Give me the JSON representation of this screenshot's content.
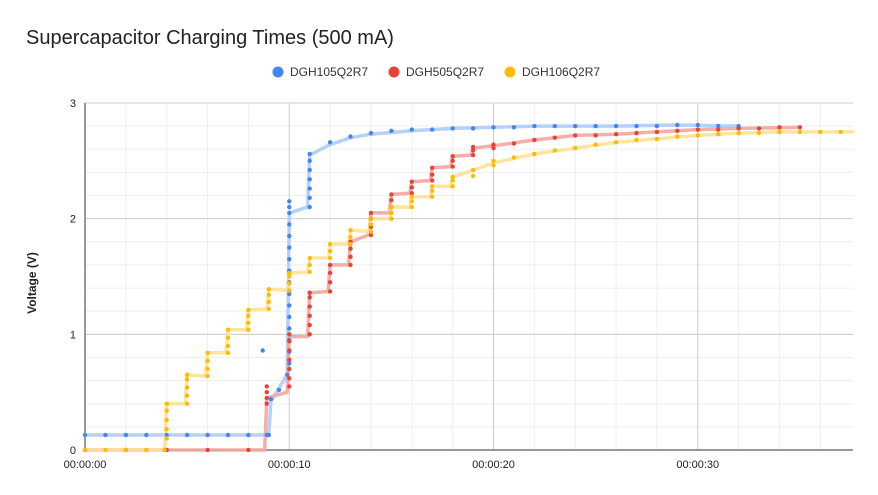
{
  "chart_data": {
    "type": "scatter",
    "title": "Supercapacitor Charging Times (500 mA)",
    "xlabel": "",
    "ylabel": "Voltage (V)",
    "xlim": [
      0,
      37.6
    ],
    "ylim": [
      0,
      3
    ],
    "x_ticks": [
      {
        "value": 0,
        "label": "00:00:00"
      },
      {
        "value": 10,
        "label": "00:00:10"
      },
      {
        "value": 20,
        "label": "00:00:20"
      },
      {
        "value": 30,
        "label": "00:00:30"
      }
    ],
    "y_ticks": [
      {
        "value": 0,
        "label": "0"
      },
      {
        "value": 1,
        "label": "1"
      },
      {
        "value": 2,
        "label": "2"
      },
      {
        "value": 3,
        "label": "3"
      }
    ],
    "legend_position": "top",
    "grid": true,
    "series": [
      {
        "name": "DGH105Q2R7",
        "color": "#4285f4",
        "line_color": "#aecbfa",
        "points": [
          [
            0,
            0.13
          ],
          [
            1,
            0.13
          ],
          [
            2,
            0.13
          ],
          [
            3,
            0.13
          ],
          [
            4,
            0.13
          ],
          [
            5,
            0.13
          ],
          [
            6,
            0.13
          ],
          [
            7,
            0.13
          ],
          [
            8,
            0.13
          ],
          [
            8.9,
            0.13
          ],
          [
            9,
            0.13
          ],
          [
            9.1,
            0.44
          ],
          [
            9.5,
            0.52
          ],
          [
            9.9,
            0.65
          ],
          [
            10,
            0.75
          ],
          [
            10,
            0.85
          ],
          [
            10,
            0.95
          ],
          [
            10,
            1.05
          ],
          [
            10,
            1.15
          ],
          [
            10,
            1.25
          ],
          [
            10,
            1.35
          ],
          [
            10,
            1.45
          ],
          [
            10,
            1.55
          ],
          [
            10,
            1.65
          ],
          [
            10,
            1.75
          ],
          [
            10,
            1.85
          ],
          [
            10,
            1.95
          ],
          [
            10,
            2.05
          ],
          [
            10,
            2.1
          ],
          [
            10,
            2.15
          ],
          [
            11,
            2.1
          ],
          [
            11,
            2.18
          ],
          [
            11,
            2.26
          ],
          [
            11,
            2.34
          ],
          [
            11,
            2.42
          ],
          [
            11,
            2.5
          ],
          [
            11,
            2.56
          ],
          [
            12,
            2.66
          ],
          [
            13,
            2.71
          ],
          [
            14,
            2.74
          ],
          [
            15,
            2.76
          ],
          [
            16,
            2.77
          ],
          [
            17,
            2.77
          ],
          [
            18,
            2.78
          ],
          [
            19,
            2.78
          ],
          [
            20,
            2.79
          ],
          [
            21,
            2.79
          ],
          [
            22,
            2.8
          ],
          [
            23,
            2.8
          ],
          [
            24,
            2.8
          ],
          [
            25,
            2.8
          ],
          [
            26,
            2.8
          ],
          [
            27,
            2.8
          ],
          [
            28,
            2.8
          ],
          [
            29,
            2.81
          ],
          [
            30,
            2.81
          ],
          [
            31,
            2.8
          ],
          [
            32,
            2.8
          ]
        ],
        "line": [
          [
            0,
            0.13
          ],
          [
            9,
            0.13
          ],
          [
            9.1,
            0.42
          ],
          [
            9.9,
            0.65
          ],
          [
            10,
            2.05
          ],
          [
            10.9,
            2.1
          ],
          [
            11,
            2.55
          ],
          [
            12,
            2.64
          ],
          [
            13,
            2.7
          ],
          [
            14,
            2.73
          ],
          [
            16,
            2.76
          ],
          [
            18,
            2.78
          ],
          [
            20,
            2.79
          ],
          [
            22,
            2.8
          ],
          [
            26,
            2.8
          ],
          [
            29,
            2.81
          ],
          [
            32,
            2.8
          ]
        ],
        "outliers": [
          [
            8.7,
            0.86
          ]
        ]
      },
      {
        "name": "DGH505Q2R7",
        "color": "#ea4335",
        "line_color": "#f4a6a0",
        "points": [
          [
            0,
            0.0
          ],
          [
            2,
            0.0
          ],
          [
            4,
            0.0
          ],
          [
            6,
            0.0
          ],
          [
            8,
            0.0
          ],
          [
            8.9,
            0.4
          ],
          [
            8.9,
            0.45
          ],
          [
            8.9,
            0.5
          ],
          [
            8.9,
            0.55
          ],
          [
            10,
            0.55
          ],
          [
            10,
            0.62
          ],
          [
            10,
            0.7
          ],
          [
            10,
            0.78
          ],
          [
            10,
            0.86
          ],
          [
            10,
            0.94
          ],
          [
            10,
            1.0
          ],
          [
            11,
            1.0
          ],
          [
            11,
            1.08
          ],
          [
            11,
            1.16
          ],
          [
            11,
            1.24
          ],
          [
            11,
            1.32
          ],
          [
            11,
            1.36
          ],
          [
            12,
            1.37
          ],
          [
            12,
            1.45
          ],
          [
            12,
            1.53
          ],
          [
            12,
            1.6
          ],
          [
            13,
            1.6
          ],
          [
            13,
            1.67
          ],
          [
            13,
            1.74
          ],
          [
            13,
            1.8
          ],
          [
            14,
            1.86
          ],
          [
            14,
            1.93
          ],
          [
            14,
            2.0
          ],
          [
            14,
            2.05
          ],
          [
            15,
            2.05
          ],
          [
            15,
            2.1
          ],
          [
            15,
            2.16
          ],
          [
            15,
            2.21
          ],
          [
            16,
            2.22
          ],
          [
            16,
            2.27
          ],
          [
            16,
            2.32
          ],
          [
            17,
            2.33
          ],
          [
            17,
            2.38
          ],
          [
            17,
            2.44
          ],
          [
            18,
            2.45
          ],
          [
            18,
            2.5
          ],
          [
            18,
            2.54
          ],
          [
            19,
            2.55
          ],
          [
            19,
            2.59
          ],
          [
            19,
            2.62
          ],
          [
            20,
            2.61
          ],
          [
            20,
            2.64
          ],
          [
            21,
            2.65
          ],
          [
            22,
            2.68
          ],
          [
            23,
            2.7
          ],
          [
            24,
            2.72
          ],
          [
            25,
            2.72
          ],
          [
            26,
            2.73
          ],
          [
            27,
            2.74
          ],
          [
            28,
            2.75
          ],
          [
            29,
            2.76
          ],
          [
            30,
            2.77
          ],
          [
            31,
            2.77
          ],
          [
            32,
            2.78
          ],
          [
            33,
            2.78
          ],
          [
            34,
            2.79
          ],
          [
            35,
            2.79
          ]
        ],
        "line": [
          [
            0,
            0.0
          ],
          [
            8.8,
            0.0
          ],
          [
            8.9,
            0.45
          ],
          [
            9.9,
            0.5
          ],
          [
            10,
            0.98
          ],
          [
            10.9,
            0.98
          ],
          [
            11,
            1.36
          ],
          [
            11.9,
            1.37
          ],
          [
            12,
            1.6
          ],
          [
            12.9,
            1.6
          ],
          [
            13,
            1.8
          ],
          [
            13.9,
            1.86
          ],
          [
            14,
            2.05
          ],
          [
            14.9,
            2.05
          ],
          [
            15,
            2.21
          ],
          [
            15.9,
            2.22
          ],
          [
            16,
            2.32
          ],
          [
            16.9,
            2.33
          ],
          [
            17,
            2.44
          ],
          [
            17.9,
            2.45
          ],
          [
            18,
            2.54
          ],
          [
            18.9,
            2.55
          ],
          [
            19,
            2.61
          ],
          [
            20,
            2.63
          ],
          [
            22,
            2.68
          ],
          [
            24,
            2.72
          ],
          [
            26,
            2.73
          ],
          [
            28,
            2.75
          ],
          [
            30,
            2.77
          ],
          [
            32,
            2.78
          ],
          [
            35,
            2.79
          ]
        ]
      },
      {
        "name": "DGH106Q2R7",
        "color": "#fbbc04",
        "line_color": "#fde293",
        "points": [
          [
            0,
            0.0
          ],
          [
            1,
            0.0
          ],
          [
            2,
            0.0
          ],
          [
            3,
            0.0
          ],
          [
            3.9,
            0.0
          ],
          [
            4,
            0.1
          ],
          [
            4,
            0.18
          ],
          [
            4,
            0.26
          ],
          [
            4,
            0.34
          ],
          [
            4,
            0.4
          ],
          [
            5,
            0.4
          ],
          [
            5,
            0.47
          ],
          [
            5,
            0.54
          ],
          [
            5,
            0.61
          ],
          [
            5,
            0.65
          ],
          [
            6,
            0.64
          ],
          [
            6,
            0.7
          ],
          [
            6,
            0.77
          ],
          [
            6,
            0.84
          ],
          [
            7,
            0.84
          ],
          [
            7,
            0.9
          ],
          [
            7,
            0.97
          ],
          [
            7,
            1.04
          ],
          [
            8,
            1.04
          ],
          [
            8,
            1.1
          ],
          [
            8,
            1.16
          ],
          [
            8,
            1.21
          ],
          [
            9,
            1.22
          ],
          [
            9,
            1.28
          ],
          [
            9,
            1.34
          ],
          [
            9,
            1.39
          ],
          [
            10,
            1.38
          ],
          [
            10,
            1.44
          ],
          [
            10,
            1.5
          ],
          [
            10,
            1.53
          ],
          [
            11,
            1.54
          ],
          [
            11,
            1.6
          ],
          [
            11,
            1.66
          ],
          [
            12,
            1.66
          ],
          [
            12,
            1.72
          ],
          [
            12,
            1.78
          ],
          [
            13,
            1.78
          ],
          [
            13,
            1.84
          ],
          [
            13,
            1.9
          ],
          [
            14,
            1.89
          ],
          [
            14,
            1.95
          ],
          [
            14,
            2.0
          ],
          [
            15,
            2.0
          ],
          [
            15,
            2.05
          ],
          [
            15,
            2.1
          ],
          [
            16,
            2.1
          ],
          [
            16,
            2.15
          ],
          [
            16,
            2.19
          ],
          [
            17,
            2.19
          ],
          [
            17,
            2.24
          ],
          [
            17,
            2.28
          ],
          [
            18,
            2.28
          ],
          [
            18,
            2.33
          ],
          [
            18,
            2.36
          ],
          [
            19,
            2.37
          ],
          [
            19,
            2.42
          ],
          [
            20,
            2.46
          ],
          [
            20,
            2.5
          ],
          [
            21,
            2.53
          ],
          [
            22,
            2.56
          ],
          [
            23,
            2.59
          ],
          [
            24,
            2.61
          ],
          [
            25,
            2.64
          ],
          [
            26,
            2.66
          ],
          [
            27,
            2.68
          ],
          [
            28,
            2.69
          ],
          [
            29,
            2.71
          ],
          [
            30,
            2.72
          ],
          [
            31,
            2.73
          ],
          [
            32,
            2.74
          ],
          [
            33,
            2.74
          ],
          [
            34,
            2.75
          ],
          [
            35,
            2.75
          ],
          [
            36,
            2.75
          ],
          [
            37,
            2.75
          ]
        ],
        "line": [
          [
            0,
            0.0
          ],
          [
            3.9,
            0.0
          ],
          [
            4,
            0.4
          ],
          [
            4.9,
            0.4
          ],
          [
            5,
            0.65
          ],
          [
            5.9,
            0.64
          ],
          [
            6,
            0.84
          ],
          [
            6.9,
            0.84
          ],
          [
            7,
            1.04
          ],
          [
            7.9,
            1.04
          ],
          [
            8,
            1.21
          ],
          [
            8.9,
            1.22
          ],
          [
            9,
            1.39
          ],
          [
            9.9,
            1.38
          ],
          [
            10,
            1.53
          ],
          [
            10.9,
            1.54
          ],
          [
            11,
            1.66
          ],
          [
            11.9,
            1.66
          ],
          [
            12,
            1.78
          ],
          [
            12.9,
            1.78
          ],
          [
            13,
            1.9
          ],
          [
            13.9,
            1.89
          ],
          [
            14,
            2.0
          ],
          [
            14.9,
            2.0
          ],
          [
            15,
            2.1
          ],
          [
            15.9,
            2.1
          ],
          [
            16,
            2.19
          ],
          [
            16.9,
            2.19
          ],
          [
            17,
            2.28
          ],
          [
            17.9,
            2.28
          ],
          [
            18,
            2.36
          ],
          [
            19,
            2.42
          ],
          [
            20,
            2.48
          ],
          [
            22,
            2.56
          ],
          [
            24,
            2.61
          ],
          [
            26,
            2.66
          ],
          [
            28,
            2.69
          ],
          [
            30,
            2.72
          ],
          [
            32,
            2.74
          ],
          [
            34,
            2.75
          ],
          [
            37.6,
            2.75
          ]
        ]
      }
    ]
  }
}
